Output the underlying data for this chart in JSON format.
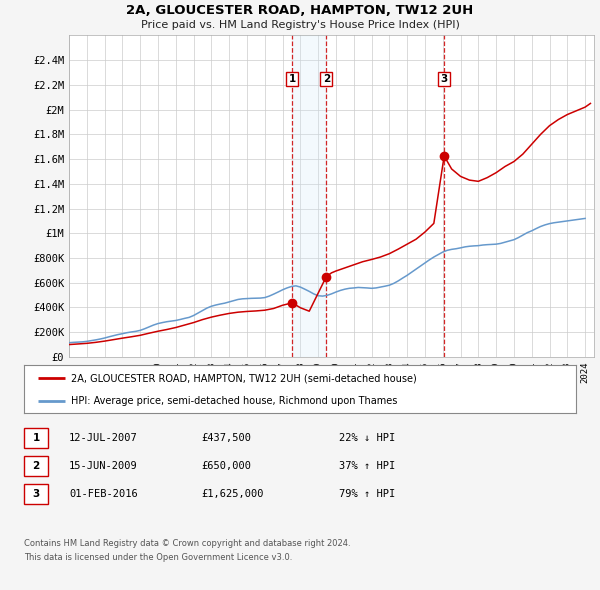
{
  "title": "2A, GLOUCESTER ROAD, HAMPTON, TW12 2UH",
  "subtitle": "Price paid vs. HM Land Registry's House Price Index (HPI)",
  "legend_label_red": "2A, GLOUCESTER ROAD, HAMPTON, TW12 2UH (semi-detached house)",
  "legend_label_blue": "HPI: Average price, semi-detached house, Richmond upon Thames",
  "footer1": "Contains HM Land Registry data © Crown copyright and database right 2024.",
  "footer2": "This data is licensed under the Open Government Licence v3.0.",
  "xlim_start": 1995.0,
  "xlim_end": 2024.5,
  "ylim_min": 0,
  "ylim_max": 2600000,
  "yticks": [
    0,
    200000,
    400000,
    600000,
    800000,
    1000000,
    1200000,
    1400000,
    1600000,
    1800000,
    2000000,
    2200000,
    2400000
  ],
  "ytick_labels": [
    "£0",
    "£200K",
    "£400K",
    "£600K",
    "£800K",
    "£1M",
    "£1.2M",
    "£1.4M",
    "£1.6M",
    "£1.8M",
    "£2M",
    "£2.2M",
    "£2.4M"
  ],
  "color_red": "#cc0000",
  "color_blue": "#6699cc",
  "color_grid": "#cccccc",
  "color_bg": "#f5f5f5",
  "shade_color": "#d0e8f8",
  "transactions": [
    {
      "label": "1",
      "date_x": 2007.54,
      "price": 437500
    },
    {
      "label": "2",
      "date_x": 2009.46,
      "price": 650000
    },
    {
      "label": "3",
      "date_x": 2016.08,
      "price": 1625000
    }
  ],
  "shade_x1": 2007.54,
  "shade_x2": 2009.46,
  "table_rows": [
    {
      "num": "1",
      "date": "12-JUL-2007",
      "price": "£437,500",
      "pct": "22% ↓ HPI"
    },
    {
      "num": "2",
      "date": "15-JUN-2009",
      "price": "£650,000",
      "pct": "37% ↑ HPI"
    },
    {
      "num": "3",
      "date": "01-FEB-2016",
      "price": "£1,625,000",
      "pct": "79% ↑ HPI"
    }
  ],
  "hpi_data_x": [
    1995.0,
    1995.25,
    1995.5,
    1995.75,
    1996.0,
    1996.25,
    1996.5,
    1996.75,
    1997.0,
    1997.25,
    1997.5,
    1997.75,
    1998.0,
    1998.25,
    1998.5,
    1998.75,
    1999.0,
    1999.25,
    1999.5,
    1999.75,
    2000.0,
    2000.25,
    2000.5,
    2000.75,
    2001.0,
    2001.25,
    2001.5,
    2001.75,
    2002.0,
    2002.25,
    2002.5,
    2002.75,
    2003.0,
    2003.25,
    2003.5,
    2003.75,
    2004.0,
    2004.25,
    2004.5,
    2004.75,
    2005.0,
    2005.25,
    2005.5,
    2005.75,
    2006.0,
    2006.25,
    2006.5,
    2006.75,
    2007.0,
    2007.25,
    2007.5,
    2007.75,
    2008.0,
    2008.25,
    2008.5,
    2008.75,
    2009.0,
    2009.25,
    2009.5,
    2009.75,
    2010.0,
    2010.25,
    2010.5,
    2010.75,
    2011.0,
    2011.25,
    2011.5,
    2011.75,
    2012.0,
    2012.25,
    2012.5,
    2012.75,
    2013.0,
    2013.25,
    2013.5,
    2013.75,
    2014.0,
    2014.25,
    2014.5,
    2014.75,
    2015.0,
    2015.25,
    2015.5,
    2015.75,
    2016.0,
    2016.25,
    2016.5,
    2016.75,
    2017.0,
    2017.25,
    2017.5,
    2017.75,
    2018.0,
    2018.25,
    2018.5,
    2018.75,
    2019.0,
    2019.25,
    2019.5,
    2019.75,
    2020.0,
    2020.25,
    2020.5,
    2020.75,
    2021.0,
    2021.25,
    2021.5,
    2021.75,
    2022.0,
    2022.25,
    2022.5,
    2022.75,
    2023.0,
    2023.25,
    2023.5,
    2023.75,
    2024.0
  ],
  "hpi_data_y": [
    115000,
    118000,
    120000,
    122000,
    126000,
    132000,
    138000,
    145000,
    153000,
    163000,
    172000,
    181000,
    188000,
    196000,
    202000,
    207000,
    215000,
    228000,
    243000,
    258000,
    270000,
    278000,
    285000,
    290000,
    295000,
    303000,
    312000,
    320000,
    335000,
    355000,
    375000,
    395000,
    410000,
    420000,
    428000,
    435000,
    445000,
    455000,
    465000,
    470000,
    472000,
    474000,
    475000,
    476000,
    480000,
    492000,
    508000,
    525000,
    543000,
    558000,
    570000,
    575000,
    565000,
    548000,
    530000,
    510000,
    495000,
    492000,
    498000,
    510000,
    525000,
    538000,
    548000,
    555000,
    558000,
    562000,
    560000,
    558000,
    555000,
    558000,
    565000,
    572000,
    580000,
    595000,
    615000,
    638000,
    660000,
    685000,
    710000,
    735000,
    760000,
    785000,
    808000,
    828000,
    848000,
    862000,
    870000,
    875000,
    882000,
    890000,
    895000,
    898000,
    900000,
    905000,
    908000,
    910000,
    912000,
    918000,
    928000,
    938000,
    948000,
    965000,
    985000,
    1005000,
    1020000,
    1038000,
    1055000,
    1068000,
    1078000,
    1085000,
    1090000,
    1095000,
    1100000,
    1105000,
    1110000,
    1115000,
    1120000
  ],
  "price_data_x": [
    1995.0,
    1995.5,
    1996.0,
    1996.5,
    1997.0,
    1997.5,
    1998.0,
    1998.5,
    1999.0,
    1999.5,
    2000.0,
    2000.5,
    2001.0,
    2001.5,
    2002.0,
    2002.5,
    2003.0,
    2003.5,
    2004.0,
    2004.5,
    2005.0,
    2005.5,
    2006.0,
    2006.5,
    2007.0,
    2007.54,
    2008.0,
    2008.5,
    2009.46,
    2009.75,
    2010.0,
    2010.5,
    2011.0,
    2011.5,
    2012.0,
    2012.5,
    2013.0,
    2013.5,
    2014.0,
    2014.5,
    2015.0,
    2015.5,
    2016.08,
    2016.5,
    2017.0,
    2017.5,
    2018.0,
    2018.5,
    2019.0,
    2019.5,
    2020.0,
    2020.5,
    2021.0,
    2021.5,
    2022.0,
    2022.5,
    2023.0,
    2023.5,
    2024.0,
    2024.3
  ],
  "price_data_y": [
    100000,
    105000,
    110000,
    118000,
    128000,
    140000,
    152000,
    163000,
    175000,
    192000,
    208000,
    222000,
    238000,
    258000,
    278000,
    302000,
    322000,
    338000,
    352000,
    362000,
    368000,
    372000,
    378000,
    392000,
    418000,
    437500,
    398000,
    370000,
    650000,
    680000,
    695000,
    720000,
    745000,
    770000,
    788000,
    808000,
    835000,
    872000,
    912000,
    952000,
    1010000,
    1080000,
    1625000,
    1520000,
    1460000,
    1430000,
    1420000,
    1450000,
    1490000,
    1540000,
    1580000,
    1640000,
    1720000,
    1800000,
    1870000,
    1920000,
    1960000,
    1990000,
    2020000,
    2050000
  ]
}
